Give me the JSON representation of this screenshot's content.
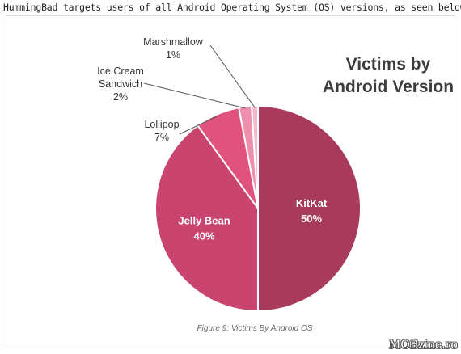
{
  "intro_text": "HummingBad targets users of all Android Operating System (OS) versions, as seen below:",
  "caption": "Figure 9: Victims By Android OS",
  "watermark": "MOBzine.ro",
  "colors": {
    "kitkat": "#a83a5c",
    "jelly_bean": "#c9456f",
    "lollipop": "#e0537f",
    "ice_cream_sandwich": "#ee90ad",
    "marshmallow": "#f4b8ca",
    "slice_border": "#ffffff",
    "leader_line": "#555555"
  },
  "chart_data": {
    "type": "pie",
    "title_lines": [
      "Victims by",
      "Android Version"
    ],
    "legend": "none",
    "slices": [
      {
        "name": "KitKat",
        "value": 50,
        "label": "50%",
        "label_position": "inside"
      },
      {
        "name": "Jelly Bean",
        "value": 40,
        "label": "40%",
        "label_position": "inside"
      },
      {
        "name": "Lollipop",
        "value": 7,
        "label": "7%",
        "label_position": "outside"
      },
      {
        "name_lines": [
          "Ice Cream",
          "Sandwich"
        ],
        "value": 2,
        "label": "2%",
        "label_position": "outside"
      },
      {
        "name": "Marshmallow",
        "value": 1,
        "label": "1%",
        "label_position": "outside"
      }
    ]
  }
}
